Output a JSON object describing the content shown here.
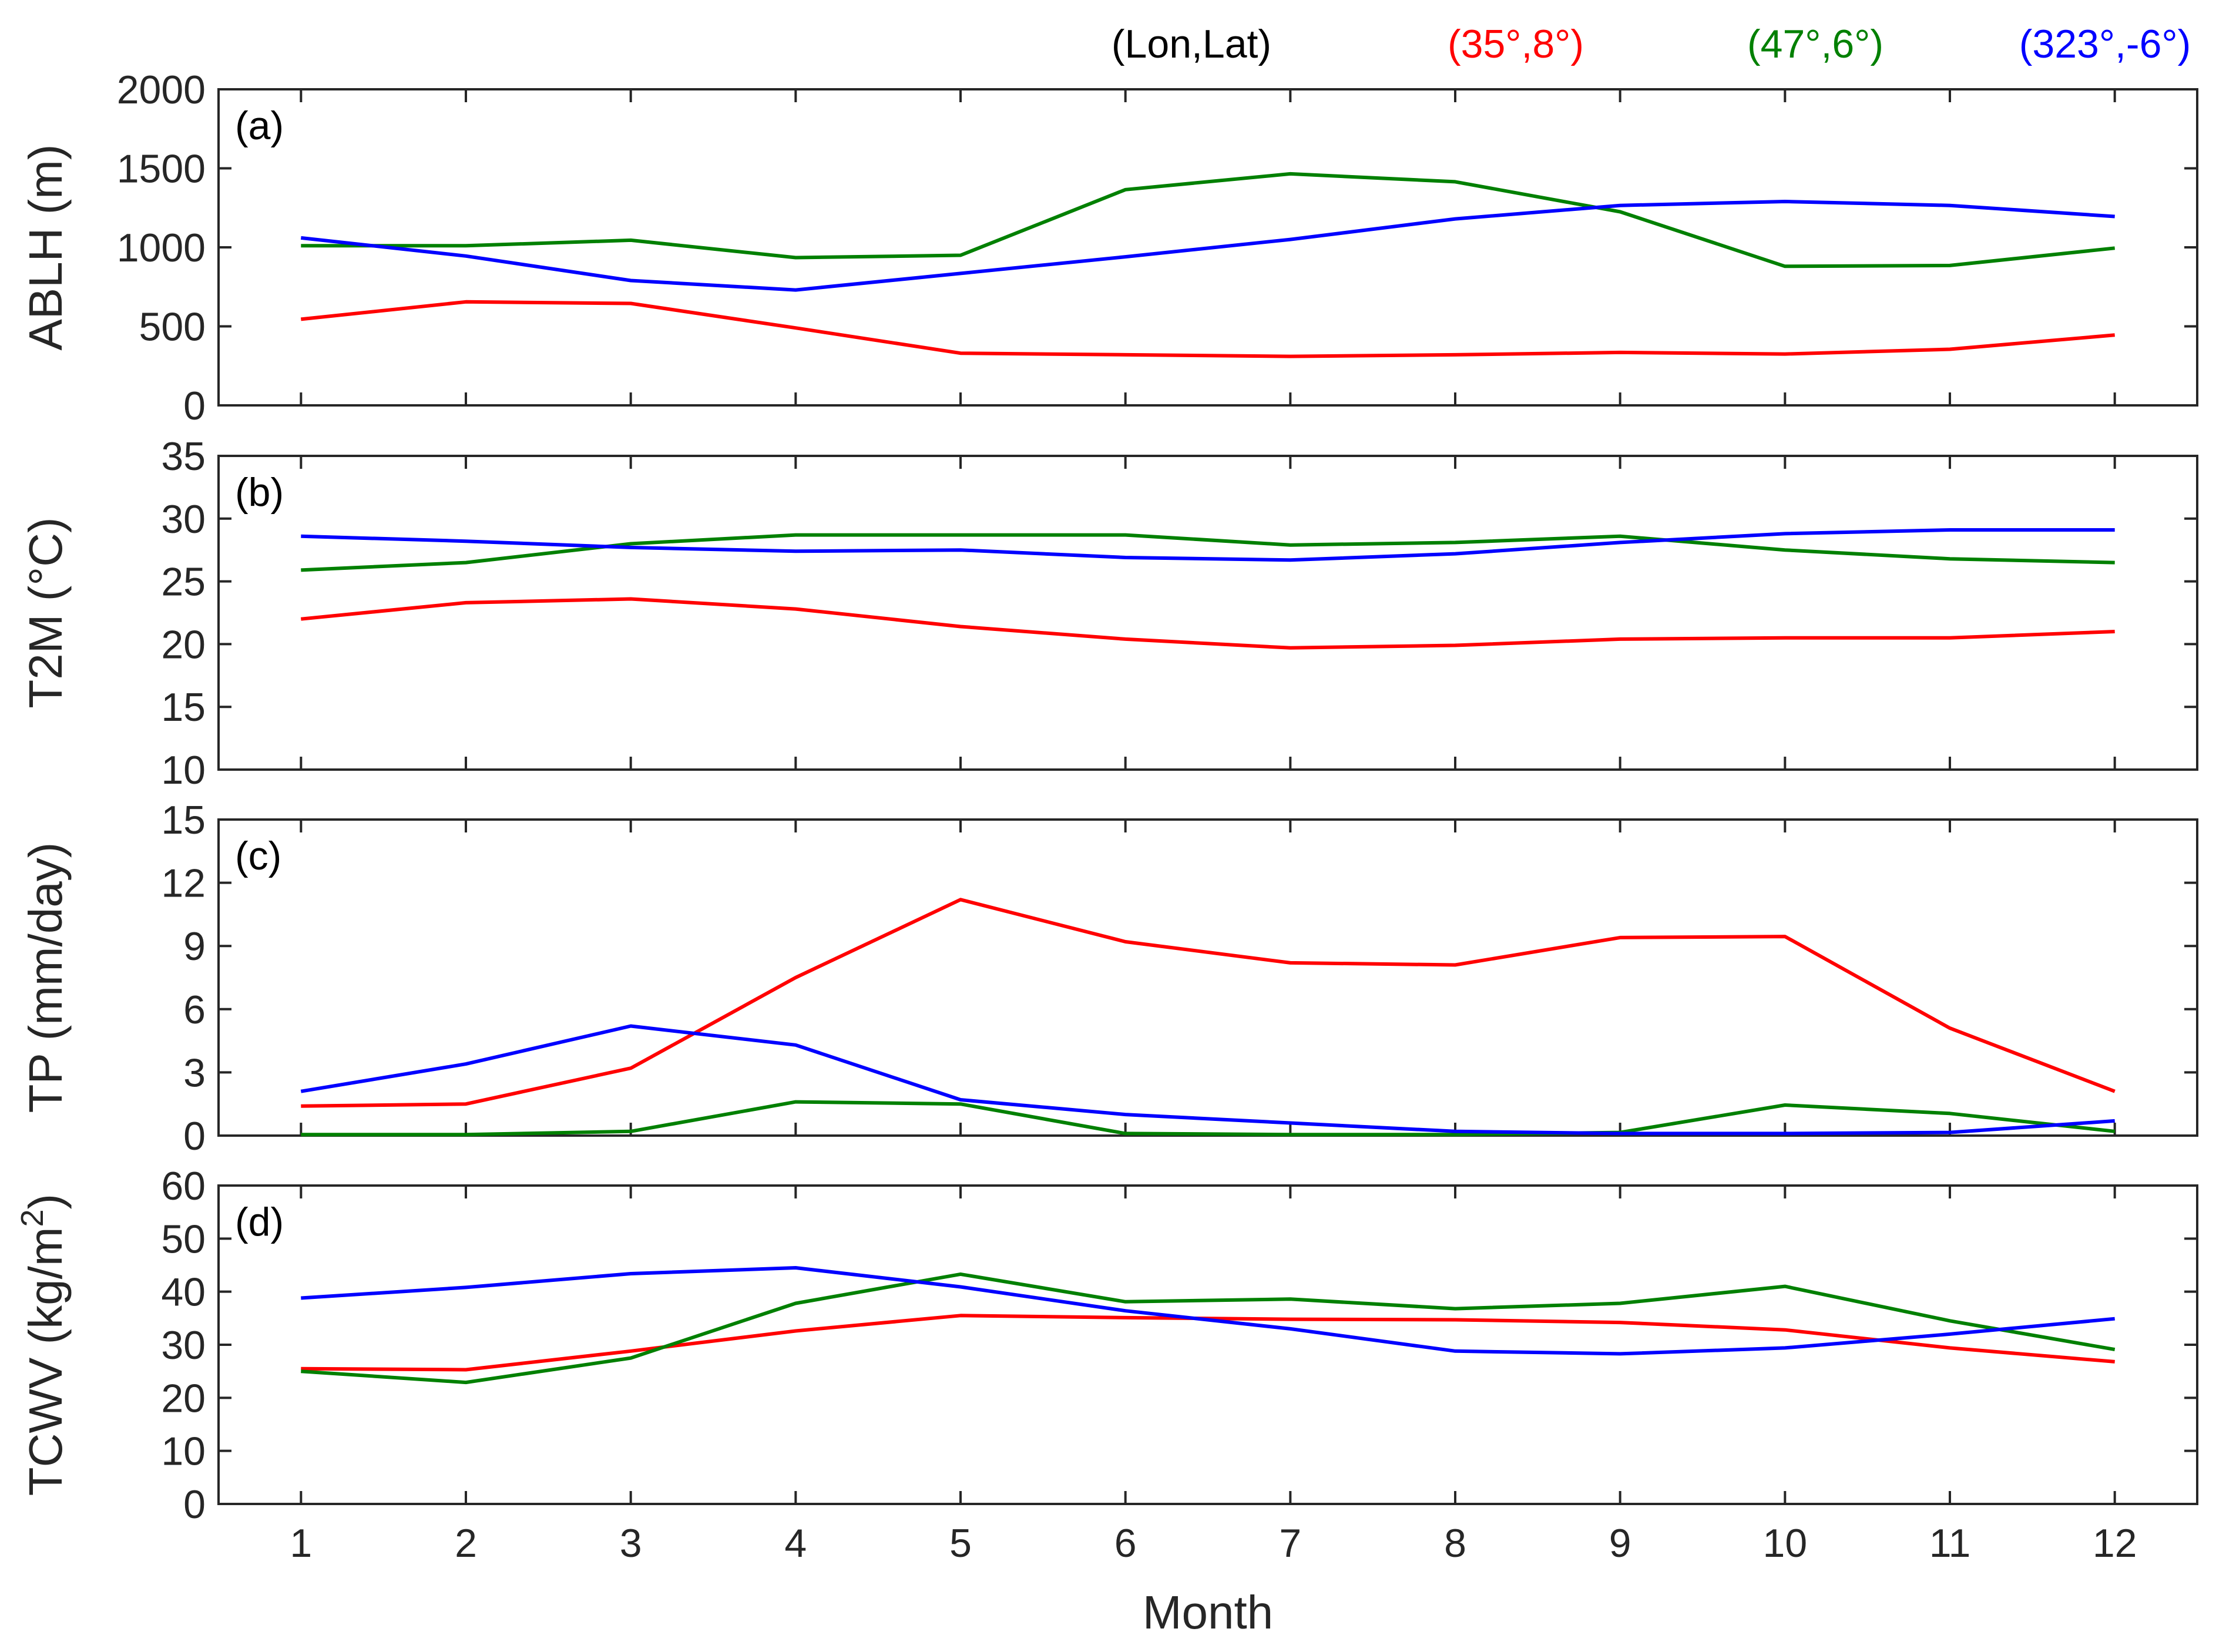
{
  "chart_data": {
    "type": "line",
    "xlabel": "Month",
    "x": [
      1,
      2,
      3,
      4,
      5,
      6,
      7,
      8,
      9,
      10,
      11,
      12
    ],
    "xlim": [
      0.5,
      12.5
    ],
    "legend": {
      "header": "(Lon,Lat)",
      "placement": "top",
      "entries": [
        {
          "label": "(35°,8°)",
          "color": "#ff0000"
        },
        {
          "label": "(47°,6°)",
          "color": "#008000"
        },
        {
          "label": "(323°,-6°)",
          "color": "#0000ff"
        }
      ]
    },
    "panels": [
      {
        "key": "a",
        "panel_label": "(a)",
        "ylabel": "ABLH (m)",
        "ylim": [
          0,
          2000
        ],
        "yticks": [
          0,
          500,
          1000,
          1500,
          2000
        ],
        "series": [
          {
            "name": "(35°,8°)",
            "color": "#ff0000",
            "values": [
              545,
              655,
              645,
              490,
              330,
              320,
              310,
              320,
              335,
              325,
              355,
              445
            ]
          },
          {
            "name": "(47°,6°)",
            "color": "#008000",
            "values": [
              1010,
              1010,
              1045,
              935,
              950,
              1365,
              1465,
              1415,
              1225,
              880,
              885,
              995
            ]
          },
          {
            "name": "(323°,-6°)",
            "color": "#0000ff",
            "values": [
              1060,
              945,
              790,
              730,
              835,
              940,
              1050,
              1180,
              1265,
              1290,
              1265,
              1195
            ]
          }
        ]
      },
      {
        "key": "b",
        "panel_label": "(b)",
        "ylabel": "T2M (°C)",
        "ylim": [
          10,
          35
        ],
        "yticks": [
          10,
          15,
          20,
          25,
          30,
          35
        ],
        "series": [
          {
            "name": "(35°,8°)",
            "color": "#ff0000",
            "values": [
              22.0,
              23.3,
              23.6,
              22.8,
              21.4,
              20.4,
              19.7,
              19.9,
              20.4,
              20.5,
              20.5,
              21.0
            ]
          },
          {
            "name": "(47°,6°)",
            "color": "#008000",
            "values": [
              25.9,
              26.5,
              28.0,
              28.7,
              28.7,
              28.7,
              27.9,
              28.1,
              28.6,
              27.5,
              26.8,
              26.5
            ]
          },
          {
            "name": "(323°,-6°)",
            "color": "#0000ff",
            "values": [
              28.6,
              28.2,
              27.7,
              27.4,
              27.5,
              26.9,
              26.7,
              27.2,
              28.1,
              28.8,
              29.1,
              29.1
            ]
          }
        ]
      },
      {
        "key": "c",
        "panel_label": "(c)",
        "ylabel": "TP (mm/day)",
        "ylim": [
          0,
          15
        ],
        "yticks": [
          0,
          3,
          6,
          9,
          12,
          15
        ],
        "series": [
          {
            "name": "(35°,8°)",
            "color": "#ff0000",
            "values": [
              1.4,
              1.5,
              3.2,
              7.5,
              11.2,
              9.2,
              8.2,
              8.1,
              9.4,
              9.45,
              5.1,
              2.1
            ]
          },
          {
            "name": "(47°,6°)",
            "color": "#008000",
            "values": [
              0.05,
              0.05,
              0.2,
              1.6,
              1.5,
              0.1,
              0.05,
              0.05,
              0.15,
              1.45,
              1.05,
              0.2
            ]
          },
          {
            "name": "(323°,-6°)",
            "color": "#0000ff",
            "values": [
              2.1,
              3.4,
              5.2,
              4.3,
              1.7,
              1.0,
              0.6,
              0.2,
              0.1,
              0.1,
              0.15,
              0.7
            ]
          }
        ]
      },
      {
        "key": "d",
        "panel_label": "(d)",
        "ylabel_main": "TCWV (kg/m",
        "ylabel_sup": "2",
        "ylabel_close": ")",
        "ylim": [
          0,
          60
        ],
        "yticks": [
          0,
          10,
          20,
          30,
          40,
          50,
          60
        ],
        "series": [
          {
            "name": "(35°,8°)",
            "color": "#ff0000",
            "values": [
              25.5,
              25.3,
              28.8,
              32.6,
              35.5,
              35.1,
              34.8,
              34.7,
              34.2,
              32.8,
              29.4,
              26.8
            ]
          },
          {
            "name": "(47°,6°)",
            "color": "#008000",
            "values": [
              25.0,
              22.9,
              27.5,
              37.8,
              43.3,
              38.1,
              38.6,
              36.8,
              37.8,
              41.0,
              34.5,
              29.1
            ]
          },
          {
            "name": "(323°,-6°)",
            "color": "#0000ff",
            "values": [
              38.8,
              40.8,
              43.4,
              44.5,
              40.9,
              36.4,
              33.0,
              28.8,
              28.3,
              29.4,
              32.0,
              34.9
            ]
          }
        ]
      }
    ]
  }
}
